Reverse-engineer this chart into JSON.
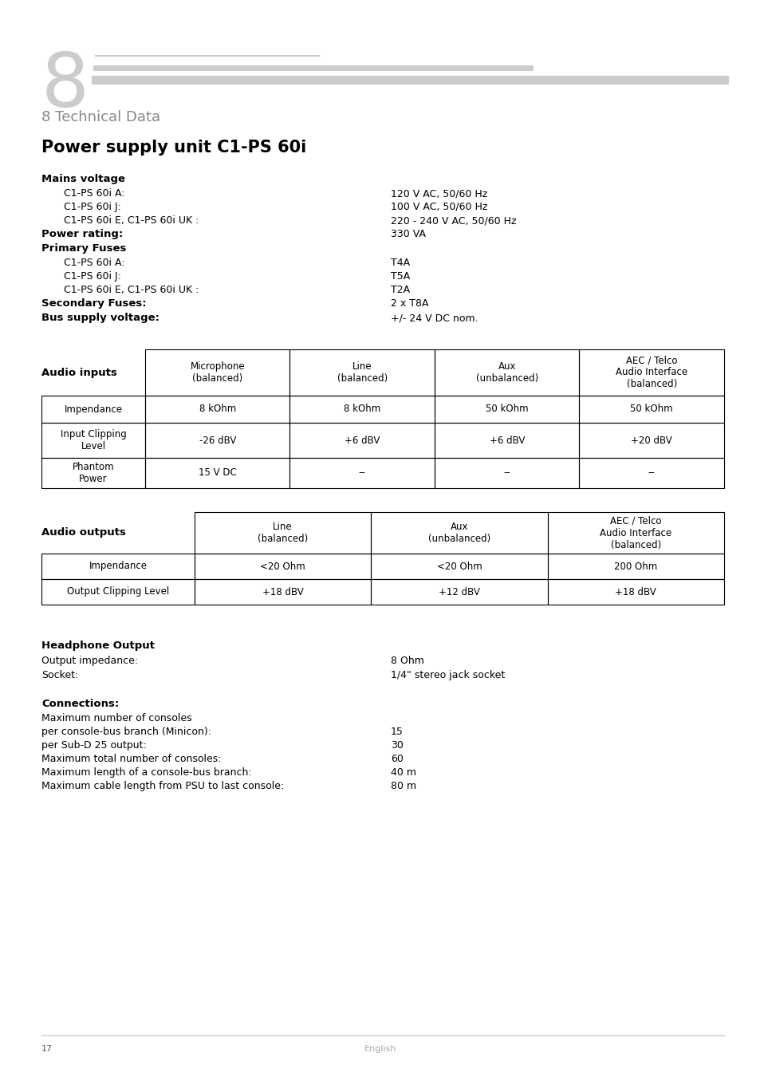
{
  "bg_color": "#ffffff",
  "page_num": "17",
  "page_lang": "English",
  "section_title": "8 Technical Data",
  "section_title_color": "#888888",
  "subsection_title": "Power supply unit C1-PS 60i",
  "mains_voltage_label": "Mains voltage",
  "mains_rows": [
    [
      "C1-PS 60i A:",
      "120 V AC, 50/60 Hz"
    ],
    [
      "C1-PS 60i J:",
      "100 V AC, 50/60 Hz"
    ],
    [
      "C1-PS 60i E, C1-PS 60i UK :",
      "220 - 240 V AC, 50/60 Hz"
    ]
  ],
  "power_rating_label": "Power rating:",
  "power_rating_value": "330 VA",
  "primary_fuses_label": "Primary Fuses",
  "primary_fuses_rows": [
    [
      "C1-PS 60i A:",
      "T4A"
    ],
    [
      "C1-PS 60i J:",
      "T5A"
    ],
    [
      "C1-PS 60i E, C1-PS 60i UK :",
      "T2A"
    ]
  ],
  "secondary_fuses_label": "Secondary Fuses:",
  "secondary_fuses_value": "2 x T8A",
  "bus_supply_label": "Bus supply voltage:",
  "bus_supply_value": "+/- 24 V DC nom.",
  "audio_inputs_label": "Audio inputs",
  "audio_inputs_headers": [
    "Microphone\n(balanced)",
    "Line\n(balanced)",
    "Aux\n(unbalanced)",
    "AEC / Telco\nAudio Interface\n(balanced)"
  ],
  "audio_inputs_rows": [
    [
      "Impendance",
      "8 kOhm",
      "8 kOhm",
      "50 kOhm",
      "50 kOhm"
    ],
    [
      "Input Clipping\nLevel",
      "-26 dBV",
      "+6 dBV",
      "+6 dBV",
      "+20 dBV"
    ],
    [
      "Phantom\nPower",
      "15 V DC",
      "--",
      "--",
      "--"
    ]
  ],
  "audio_outputs_label": "Audio outputs",
  "audio_outputs_headers": [
    "Line\n(balanced)",
    "Aux\n(unbalanced)",
    "AEC / Telco\nAudio Interface\n(balanced)"
  ],
  "audio_outputs_rows": [
    [
      "Impendance",
      "<20 Ohm",
      "<20 Ohm",
      "200 Ohm"
    ],
    [
      "Output Clipping Level",
      "+18 dBV",
      "+12 dBV",
      "+18 dBV"
    ]
  ],
  "headphone_label": "Headphone Output",
  "headphone_rows": [
    [
      "Output impedance:",
      "8 Ohm"
    ],
    [
      "Socket:",
      "1/4\" stereo jack socket"
    ]
  ],
  "connections_label": "Connections:",
  "connections_text": "Maximum number of consoles",
  "connections_rows": [
    [
      "per console-bus branch (Minicon):",
      "15"
    ],
    [
      "per Sub-D 25 output:",
      "30"
    ],
    [
      "Maximum total number of consoles:",
      "60"
    ],
    [
      "Maximum length of a console-bus branch:",
      "40 m"
    ],
    [
      "Maximum cable length from PSU to last console:",
      "80 m"
    ]
  ]
}
